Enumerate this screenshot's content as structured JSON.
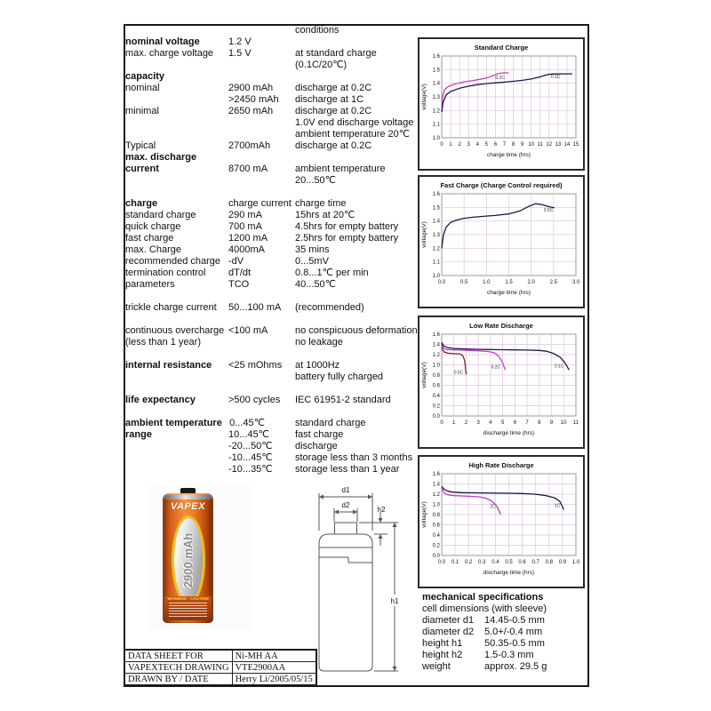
{
  "spec_rows": [
    {
      "c3": "conditions"
    },
    {
      "c1": "nominal voltage",
      "b": true,
      "c2": "1.2 V"
    },
    {
      "c1": "max. charge voltage",
      "c2": "1.5 V",
      "c3": "at standard charge"
    },
    {
      "c3": "(0.1C/20℃)"
    },
    {
      "c1": "capacity",
      "b": true
    },
    {
      "c1": "nominal",
      "c2": "2900 mAh",
      "c3": "discharge at 0.2C"
    },
    {
      "c2": ">2450 mAh",
      "c3": "discharge at 1C"
    },
    {
      "c1": "minimal",
      "c2": "2650 mAh",
      "c3": "discharge at 0.2C"
    },
    {
      "c3": "1.0V end discharge voltage"
    },
    {
      "c3": "ambient temperature 20℃"
    },
    {
      "c1": "Typical",
      "c2": "2700mAh",
      "c3": "discharge at 0.2C"
    },
    {
      "c1": "max. discharge",
      "b": true
    },
    {
      "c1": "current",
      "b": true,
      "c2": "8700 mA",
      "c3": "ambient temperature"
    },
    {
      "c3": "20...50℃"
    },
    {},
    {
      "c1": "charge",
      "b": true,
      "c2": "charge current",
      "c3": "charge time"
    },
    {
      "c1": "standard charge",
      "c2": "290 mA",
      "c3": "15hrs at 20℃"
    },
    {
      "c1": "quick charge",
      "c2": "700 mA",
      "c3": "4.5hrs for empty battery"
    },
    {
      "c1": "fast charge",
      "c2": "1200 mA",
      "c3": "2.5hrs for empty battery"
    },
    {
      "c1": "max. Charge",
      "c2": "4000mA",
      "c3": "35 mins"
    },
    {
      "c1": "recommended charge",
      "c2": "-dV",
      "c3": "0...5mV"
    },
    {
      "c1": "termination control",
      "c2": "dT/dt",
      "c3": "0.8...1℃ per min"
    },
    {
      "c1": "parameters",
      "c2": "TCO",
      "c3": "40...50℃"
    },
    {},
    {
      "c1": "trickle charge current",
      "c2": "50...100 mA",
      "c3": "(recommended)"
    },
    {},
    {
      "c1": "continuous overcharge",
      "c2": "<100 mA",
      "c3": "no conspicuous deformation"
    },
    {
      "c1": "(less than 1 year)",
      "c3": "no leakage"
    },
    {},
    {
      "c1": "internal resistance",
      "b": true,
      "c2": "<25 mOhms",
      "c3": "at 1000Hz"
    },
    {
      "c3": "battery fully charged"
    },
    {},
    {
      "c1": "life expectancy",
      "b": true,
      "c2": ">500 cycles",
      "c3": "IEC 61951-2 standard"
    },
    {},
    {
      "c1": "ambient temperature",
      "b": true,
      "c2": "0...45℃",
      "r": true,
      "c3": "standard charge"
    },
    {
      "c1": "range",
      "b": true,
      "c2": "10...45℃",
      "r": true,
      "c3": "fast charge"
    },
    {
      "c2": "-20...50℃",
      "r": true,
      "c3": "discharge"
    },
    {
      "c2": "-10...45℃",
      "r": true,
      "c3": "storage less than 3 months"
    },
    {
      "c2": "-10...35℃",
      "r": true,
      "c3": "storage less than 1 year"
    }
  ],
  "chart_data": [
    {
      "type": "line",
      "title": "Standard Charge",
      "xlabel": "charge time (hrs)",
      "ylabel": "voltage(V)",
      "xlim": [
        0,
        15
      ],
      "ylim": [
        1.0,
        1.6
      ],
      "grid": true,
      "xticks": [
        "0",
        "1",
        "2",
        "3",
        "4",
        "5",
        "6",
        "7",
        "8",
        "9",
        "10",
        "11",
        "12",
        "13",
        "14",
        "15"
      ],
      "yticks": [
        "1.0",
        "1.1",
        "1.2",
        "1.3",
        "1.4",
        "1.5",
        "1.6"
      ],
      "series": [
        {
          "name": "0.2C",
          "color": "#c23cc2",
          "label_pos": [
            6.0,
            1.432
          ],
          "points": [
            [
              0,
              1.19
            ],
            [
              0.05,
              1.26
            ],
            [
              0.12,
              1.31
            ],
            [
              0.3,
              1.35
            ],
            [
              0.7,
              1.375
            ],
            [
              1.5,
              1.395
            ],
            [
              2.5,
              1.41
            ],
            [
              3.5,
              1.42
            ],
            [
              4.5,
              1.432
            ],
            [
              5.2,
              1.442
            ],
            [
              5.8,
              1.458
            ],
            [
              6.3,
              1.47
            ],
            [
              6.9,
              1.476
            ],
            [
              7.5,
              1.476
            ]
          ]
        },
        {
          "name": "0.1C",
          "color": "#191946",
          "label_pos": [
            12.2,
            1.437
          ],
          "points": [
            [
              0,
              1.19
            ],
            [
              0.15,
              1.26
            ],
            [
              0.5,
              1.315
            ],
            [
              1,
              1.34
            ],
            [
              2,
              1.363
            ],
            [
              3,
              1.378
            ],
            [
              4,
              1.39
            ],
            [
              5,
              1.398
            ],
            [
              6,
              1.403
            ],
            [
              7,
              1.408
            ],
            [
              8,
              1.414
            ],
            [
              9,
              1.421
            ],
            [
              10,
              1.431
            ],
            [
              11,
              1.447
            ],
            [
              11.8,
              1.463
            ],
            [
              12.4,
              1.468
            ],
            [
              13.5,
              1.469
            ],
            [
              14.6,
              1.469
            ]
          ]
        }
      ]
    },
    {
      "type": "line",
      "title": "Fast Charge (Charge Control required)",
      "xlabel": "charge time (hrs)",
      "ylabel": "voltage(V)",
      "xlim": [
        0,
        3
      ],
      "ylim": [
        1.0,
        1.6
      ],
      "grid": true,
      "xticks": [
        "0.0",
        "0.5",
        "1.0",
        "1.5",
        "2.0",
        "2.5",
        "3.0"
      ],
      "yticks": [
        "1.0",
        "1.1",
        "1.2",
        "1.3",
        "1.4",
        "1.5",
        "1.6"
      ],
      "series": [
        {
          "name": "0.5C",
          "color": "#191946",
          "label_pos": [
            2.28,
            1.468
          ],
          "points": [
            [
              0,
              1.2
            ],
            [
              0.04,
              1.3
            ],
            [
              0.1,
              1.355
            ],
            [
              0.2,
              1.39
            ],
            [
              0.35,
              1.408
            ],
            [
              0.5,
              1.42
            ],
            [
              0.75,
              1.43
            ],
            [
              1,
              1.436
            ],
            [
              1.2,
              1.441
            ],
            [
              1.5,
              1.452
            ],
            [
              1.75,
              1.474
            ],
            [
              1.95,
              1.508
            ],
            [
              2.1,
              1.527
            ],
            [
              2.25,
              1.519
            ],
            [
              2.4,
              1.505
            ],
            [
              2.52,
              1.497
            ]
          ]
        }
      ]
    },
    {
      "type": "line",
      "title": "Low Rate Discharge",
      "xlabel": "discharge time (hrs)",
      "ylabel": "voltage(V)",
      "xlim": [
        0,
        11
      ],
      "ylim": [
        0.0,
        1.6
      ],
      "grid": true,
      "xticks": [
        "0",
        "1",
        "2",
        "3",
        "4",
        "5",
        "6",
        "7",
        "8",
        "9",
        "10",
        "11"
      ],
      "yticks": [
        "0.0",
        "0.2",
        "0.4",
        "0.6",
        "0.8",
        "1.0",
        "1.2",
        "1.4",
        "1.6"
      ],
      "series": [
        {
          "name": "0.5C",
          "color": "#7c241c",
          "label_pos": [
            1.0,
            0.83
          ],
          "points": [
            [
              0,
              1.42
            ],
            [
              0.07,
              1.3
            ],
            [
              0.2,
              1.252
            ],
            [
              0.5,
              1.228
            ],
            [
              1,
              1.22
            ],
            [
              1.4,
              1.215
            ],
            [
              1.6,
              1.2
            ],
            [
              1.75,
              1.17
            ],
            [
              1.87,
              1.09
            ],
            [
              1.94,
              0.97
            ],
            [
              2.0,
              0.81
            ]
          ]
        },
        {
          "name": "0.2C",
          "color": "#c23cc2",
          "label_pos": [
            4.05,
            0.93
          ],
          "points": [
            [
              0,
              1.43
            ],
            [
              0.12,
              1.33
            ],
            [
              0.4,
              1.3
            ],
            [
              1,
              1.293
            ],
            [
              2,
              1.285
            ],
            [
              3,
              1.275
            ],
            [
              3.8,
              1.26
            ],
            [
              4.3,
              1.238
            ],
            [
              4.7,
              1.16
            ],
            [
              5.0,
              1.04
            ],
            [
              5.2,
              0.9
            ]
          ]
        },
        {
          "name": "0.1C",
          "color": "#191946",
          "label_pos": [
            9.25,
            0.95
          ],
          "points": [
            [
              0,
              1.44
            ],
            [
              0.15,
              1.37
            ],
            [
              0.5,
              1.335
            ],
            [
              1,
              1.32
            ],
            [
              2,
              1.31
            ],
            [
              3,
              1.302
            ],
            [
              4,
              1.3
            ],
            [
              5,
              1.296
            ],
            [
              6,
              1.292
            ],
            [
              7,
              1.289
            ],
            [
              8,
              1.282
            ],
            [
              8.6,
              1.266
            ],
            [
              9.2,
              1.22
            ],
            [
              9.7,
              1.15
            ],
            [
              10.1,
              1.04
            ],
            [
              10.45,
              0.9
            ]
          ]
        }
      ]
    },
    {
      "type": "line",
      "title": "High Rate Discharge",
      "xlabel": "discharge time (hrs)",
      "ylabel": "voltage(V)",
      "xlim": [
        0,
        1
      ],
      "ylim": [
        0.0,
        1.6
      ],
      "grid": true,
      "xticks": [
        "0.0",
        "0.1",
        "0.2",
        "0.3",
        "0.4",
        "0.5",
        "0.6",
        "0.7",
        "0.8",
        "0.9",
        "1.0"
      ],
      "yticks": [
        "0.0",
        "0.2",
        "0.4",
        "0.6",
        "0.8",
        "1.0",
        "1.2",
        "1.4",
        "1.6"
      ],
      "series": [
        {
          "name": "2C",
          "color": "#c23cc2",
          "label_pos": [
            0.36,
            0.93
          ],
          "points": [
            [
              0,
              1.32
            ],
            [
              0.012,
              1.25
            ],
            [
              0.03,
              1.2
            ],
            [
              0.06,
              1.18
            ],
            [
              0.1,
              1.17
            ],
            [
              0.2,
              1.158
            ],
            [
              0.28,
              1.148
            ],
            [
              0.33,
              1.12
            ],
            [
              0.37,
              1.07
            ],
            [
              0.4,
              1.0
            ],
            [
              0.42,
              0.92
            ],
            [
              0.44,
              0.8
            ]
          ]
        },
        {
          "name": "1C",
          "color": "#191946",
          "label_pos": [
            0.84,
            0.95
          ],
          "points": [
            [
              0,
              1.35
            ],
            [
              0.02,
              1.29
            ],
            [
              0.05,
              1.255
            ],
            [
              0.08,
              1.24
            ],
            [
              0.15,
              1.23
            ],
            [
              0.3,
              1.224
            ],
            [
              0.5,
              1.218
            ],
            [
              0.6,
              1.212
            ],
            [
              0.7,
              1.198
            ],
            [
              0.78,
              1.17
            ],
            [
              0.84,
              1.128
            ],
            [
              0.88,
              1.06
            ],
            [
              0.91,
              0.9
            ]
          ]
        }
      ]
    }
  ],
  "battery_photo": {
    "brand": "VAPEX",
    "capacity_label": "2900 mAh",
    "warning_text": "WARNING - CAUTION"
  },
  "diagram": {
    "d1": "d1",
    "d2": "d2",
    "h1": "h1",
    "h2": "h2"
  },
  "mech": {
    "title": "mechanical specifications",
    "subtitle": "cell dimensions (with sleeve)",
    "rows": [
      {
        "label": "diameter d1",
        "value": "14.45-0.5 mm"
      },
      {
        "label": "diameter d2",
        "value": "5.0+/-0.4 mm"
      },
      {
        "label": "height h1",
        "value": "50.35-0.5 mm"
      },
      {
        "label": "height h2",
        "value": "1.5-0.3 mm"
      },
      {
        "label": "weight",
        "value": "approx. 29.5 g"
      }
    ]
  },
  "info_table": {
    "rows": [
      {
        "label": "DATA SHEET FOR",
        "value": "Ni-MH AA"
      },
      {
        "label": "VAPEXTECH DRAWING",
        "value": "VTE2900AA"
      },
      {
        "label": "DRAWN BY / DATE",
        "value": "Herry Li/2005/05/15"
      }
    ]
  },
  "colors": {
    "navy": "#191946",
    "magenta": "#c23cc2",
    "dark_red": "#7c241c",
    "grid_pink": "#dfc3df",
    "battery_orange": "#ef7d22"
  }
}
